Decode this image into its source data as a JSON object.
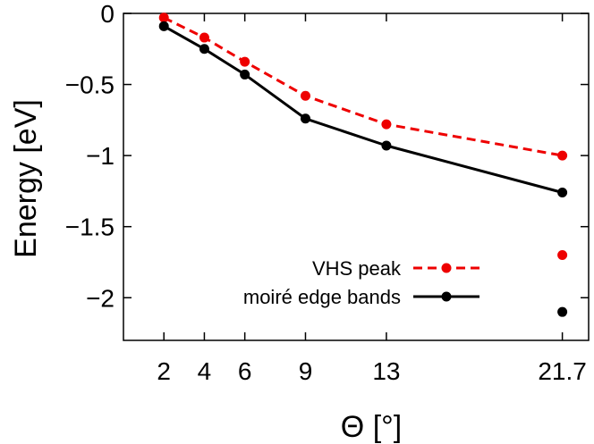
{
  "chart_data": {
    "type": "line",
    "xlabel": "Θ [°]",
    "ylabel": "Energy [eV]",
    "xlim": [
      0,
      23
    ],
    "ylim": [
      -2.3,
      0
    ],
    "x_ticks": [
      2,
      4,
      6,
      9,
      13,
      21.7
    ],
    "x_tick_labels": [
      "2",
      "4",
      "6",
      "9",
      "13",
      "21.7"
    ],
    "y_ticks": [
      0,
      -0.5,
      -1,
      -1.5,
      -2
    ],
    "y_tick_labels": [
      "0",
      "−0.5",
      "−1",
      "−1.5",
      "−2"
    ],
    "legend_position": "bottom-right",
    "series": [
      {
        "name": "VHS peak",
        "color": "#ee0000",
        "line_style": "dashed",
        "x": [
          2,
          4,
          6,
          9,
          13,
          21.7
        ],
        "y": [
          -0.03,
          -0.17,
          -0.34,
          -0.58,
          -0.78,
          -1.0
        ],
        "extra_points": [
          {
            "x": 21.7,
            "y": -1.7
          }
        ]
      },
      {
        "name": "moiré edge bands",
        "color": "#000000",
        "line_style": "solid",
        "x": [
          2,
          4,
          6,
          9,
          13,
          21.7
        ],
        "y": [
          -0.09,
          -0.25,
          -0.43,
          -0.74,
          -0.93,
          -1.26
        ],
        "extra_points": [
          {
            "x": 21.7,
            "y": -2.1
          }
        ]
      }
    ]
  }
}
